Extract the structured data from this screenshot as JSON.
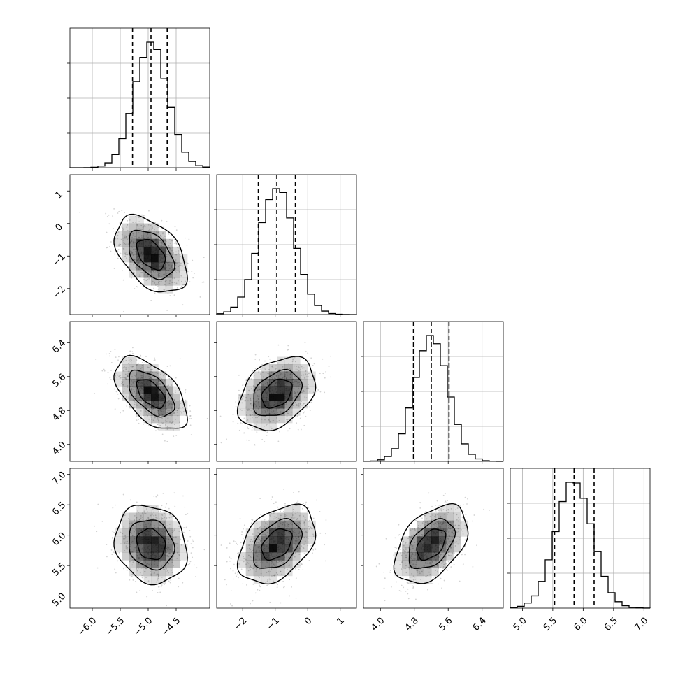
{
  "chart_data": {
    "type": "corner",
    "grid": true,
    "n_params": 4,
    "params": [
      {
        "range": [
          -6.4,
          -3.9
        ],
        "mean": -4.95,
        "sd": 0.3,
        "quantiles": [
          -5.28,
          -4.95,
          -4.66
        ],
        "ticks": [
          -6.0,
          -5.5,
          -5.0,
          -4.5
        ],
        "tick_labels": [
          "−6.0",
          "−5.5",
          "−5.0",
          "−4.5"
        ]
      },
      {
        "range": [
          -2.8,
          1.5
        ],
        "mean": -0.95,
        "sd": 0.55,
        "quantiles": [
          -1.52,
          -0.95,
          -0.38
        ],
        "ticks": [
          -2,
          -1,
          0,
          1
        ],
        "tick_labels": [
          "−2",
          "−1",
          "0",
          "1"
        ]
      },
      {
        "range": [
          3.6,
          6.9
        ],
        "mean": 5.2,
        "sd": 0.4,
        "quantiles": [
          4.78,
          5.2,
          5.62
        ],
        "ticks": [
          4.0,
          4.8,
          5.6,
          6.4
        ],
        "tick_labels": [
          "4.0",
          "4.8",
          "5.6",
          "6.4"
        ]
      },
      {
        "range": [
          4.8,
          7.1
        ],
        "mean": 5.85,
        "sd": 0.3,
        "quantiles": [
          5.53,
          5.85,
          6.18
        ],
        "ticks": [
          5.0,
          5.5,
          6.0,
          6.5,
          7.0
        ],
        "tick_labels": [
          "5.0",
          "5.5",
          "6.0",
          "6.5",
          "7.0"
        ]
      }
    ],
    "correlations": [
      {
        "pair": [
          0,
          1
        ],
        "rho": -0.45
      },
      {
        "pair": [
          0,
          2
        ],
        "rho": -0.55
      },
      {
        "pair": [
          0,
          3
        ],
        "rho": -0.15
      },
      {
        "pair": [
          1,
          2
        ],
        "rho": 0.35
      },
      {
        "pair": [
          1,
          3
        ],
        "rho": 0.4
      },
      {
        "pair": [
          2,
          3
        ],
        "rho": 0.45
      }
    ],
    "contour_levels": [
      0.3,
      0.6,
      0.9
    ],
    "hist_bins": 20,
    "colors": {
      "line": "#000000",
      "grid": "#b0b0b0",
      "points": "#808080",
      "density": "#000000"
    }
  }
}
